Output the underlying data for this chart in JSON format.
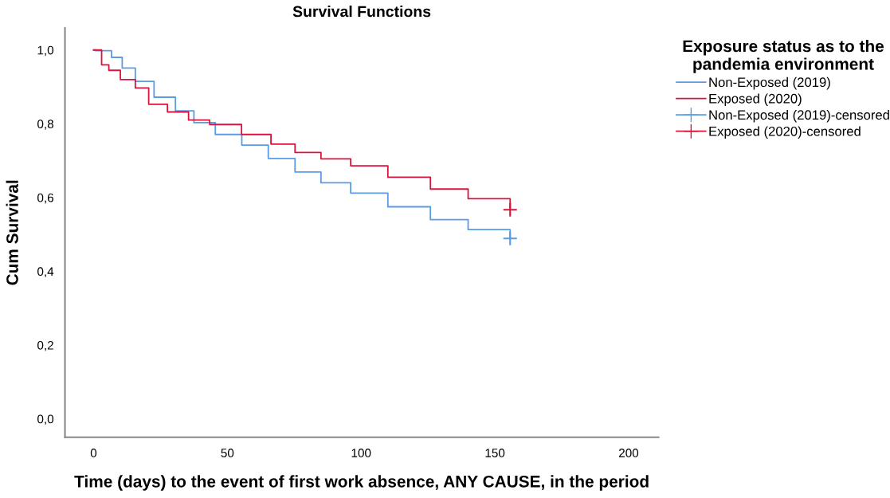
{
  "chart_data": {
    "type": "step",
    "title": "Survival Functions",
    "xlabel": "Time (days) to the event of first work absence, ANY CAUSE, in the period",
    "ylabel": "Cum Survival",
    "legend_title": "Exposure status as to the\npandemia environment",
    "series": [
      {
        "name": "Non-Exposed (2019)",
        "color": "#5a9be6",
        "x": [
          0,
          0.7,
          6.7,
          10.7,
          15.6,
          22.6,
          30.6,
          37.5,
          45.5,
          55.4,
          65.3,
          75.3,
          85,
          96.1,
          110,
          125.9,
          140,
          155.7
        ],
        "values": [
          1,
          0.998,
          0.98,
          0.951,
          0.915,
          0.872,
          0.835,
          0.803,
          0.771,
          0.742,
          0.706,
          0.669,
          0.64,
          0.612,
          0.575,
          0.54,
          0.513,
          0.489
        ]
      },
      {
        "name": "Exposed (2020)",
        "color": "#d9143c",
        "x": [
          0,
          3,
          5.7,
          10,
          15.6,
          20.6,
          27.6,
          35.5,
          43.4,
          55.3,
          66.3,
          75.3,
          85,
          96.1,
          110,
          125.9,
          140,
          155.7
        ],
        "values": [
          1,
          0.96,
          0.945,
          0.92,
          0.897,
          0.853,
          0.832,
          0.81,
          0.798,
          0.771,
          0.745,
          0.722,
          0.705,
          0.686,
          0.655,
          0.623,
          0.597,
          0.567
        ]
      },
      {
        "name": "Non-Exposed (2019)-censored",
        "type": "scatter",
        "marker": "cross",
        "color": "#5a9be6",
        "x": [
          155.7
        ],
        "values": [
          0.489
        ]
      },
      {
        "name": "Exposed (2020)-censored",
        "type": "scatter",
        "marker": "cross",
        "color": "#d9143c",
        "x": [
          155.7
        ],
        "values": [
          0.567
        ]
      }
    ],
    "xlim": [
      -10.7,
      211.2
    ],
    "ylim": [
      -0.05,
      1.06
    ],
    "xticks": [
      0,
      50,
      100,
      150,
      200
    ],
    "yticks": [
      {
        "value": 0,
        "label": "0,0"
      },
      {
        "value": 0.2,
        "label": "0,2"
      },
      {
        "value": 0.4,
        "label": "0,4"
      },
      {
        "value": 0.6,
        "label": "0,6"
      },
      {
        "value": 0.8,
        "label": "0,8"
      },
      {
        "value": 1,
        "label": "1,0"
      }
    ],
    "grid": false,
    "legend": "top right"
  }
}
